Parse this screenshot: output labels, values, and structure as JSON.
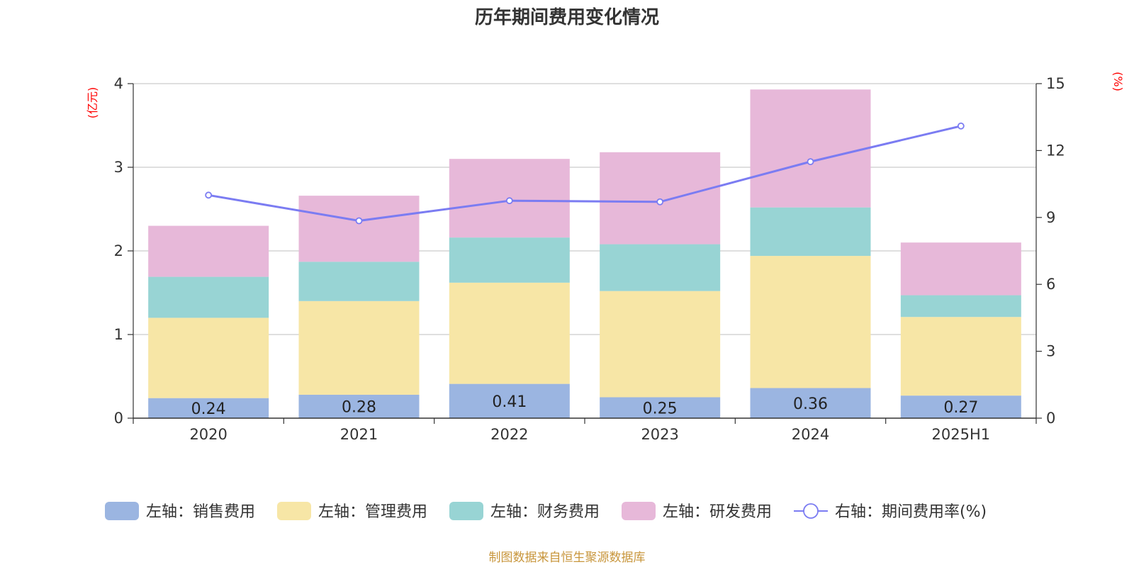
{
  "chart_data": {
    "type": "bar",
    "title": "历年期间费用变化情况",
    "categories": [
      "2020",
      "2021",
      "2022",
      "2023",
      "2024",
      "2025H1"
    ],
    "left_axis": {
      "unit": "(亿元)",
      "ylim": [
        0,
        4
      ],
      "ticks": [
        "0",
        "1",
        "2",
        "3",
        "4"
      ]
    },
    "right_axis": {
      "unit": "(%)",
      "ylim": [
        0,
        15
      ],
      "ticks": [
        "0",
        "3",
        "6",
        "9",
        "12",
        "15"
      ]
    },
    "stacked": true,
    "grid": true,
    "legend_position": "bottom",
    "series": [
      {
        "name": "左轴：销售费用",
        "type": "bar",
        "axis": "left",
        "color": "#9bb5e1",
        "values": [
          0.24,
          0.28,
          0.41,
          0.25,
          0.36,
          0.27
        ],
        "show_labels": true
      },
      {
        "name": "左轴：管理费用",
        "type": "bar",
        "axis": "left",
        "color": "#f7e6a6",
        "values": [
          0.96,
          1.12,
          1.21,
          1.27,
          1.58,
          0.94
        ],
        "show_labels": false
      },
      {
        "name": "左轴：财务费用",
        "type": "bar",
        "axis": "left",
        "color": "#98d4d4",
        "values": [
          0.49,
          0.47,
          0.54,
          0.56,
          0.58,
          0.26
        ],
        "show_labels": false
      },
      {
        "name": "左轴：研发费用",
        "type": "bar",
        "axis": "left",
        "color": "#e7b8d9",
        "values": [
          0.61,
          0.79,
          0.94,
          1.1,
          1.41,
          0.63
        ],
        "show_labels": false
      },
      {
        "name": "右轴：期间费用率(%)",
        "type": "line",
        "axis": "right",
        "color": "#7b7cf2",
        "values": [
          10.0,
          8.85,
          9.75,
          9.7,
          11.5,
          13.1
        ],
        "show_labels": false
      }
    ],
    "source": "制图数据来自恒生聚源数据库"
  }
}
